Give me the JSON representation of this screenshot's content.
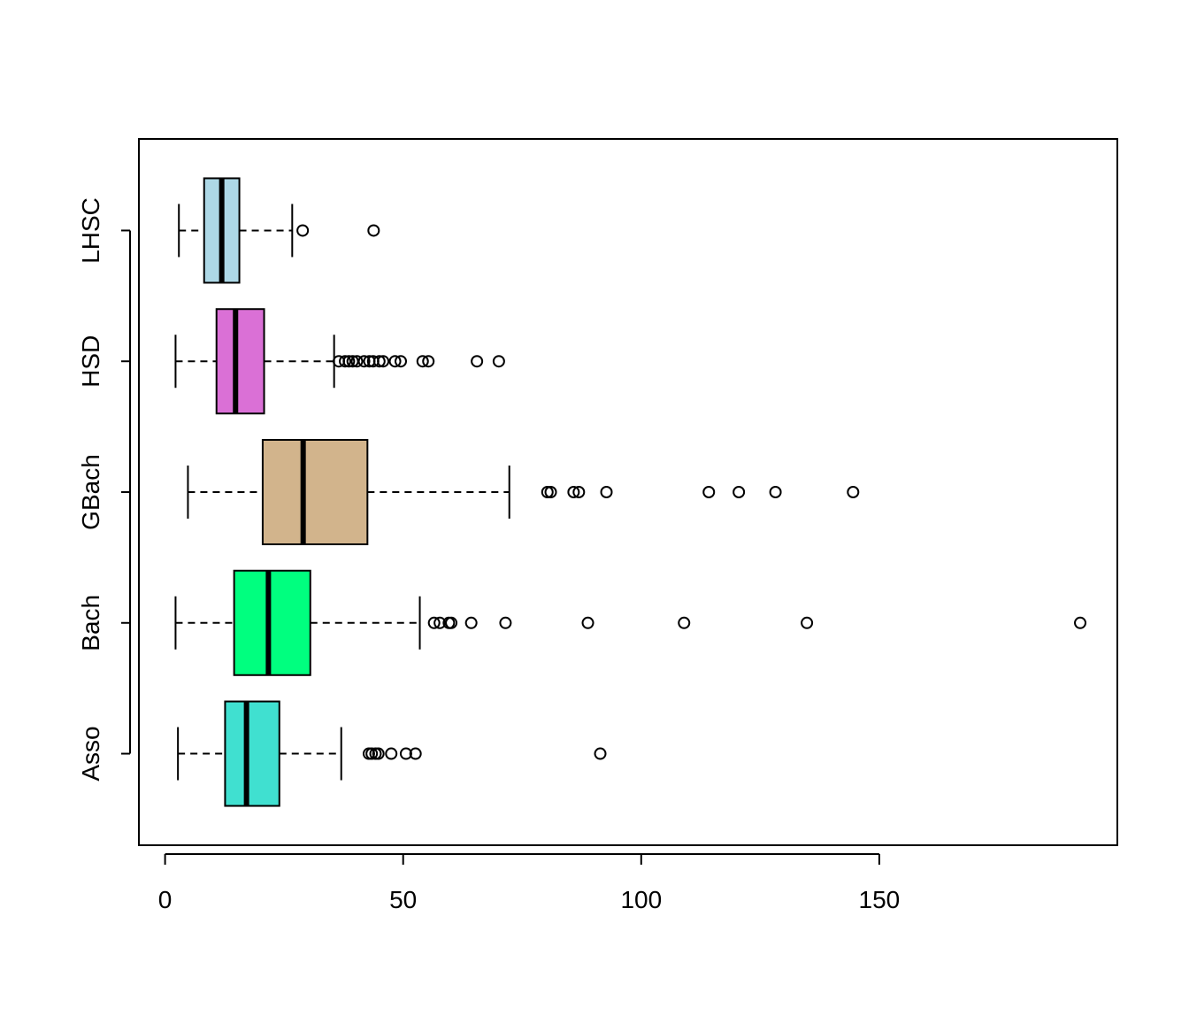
{
  "chart_data": {
    "type": "boxplot",
    "orientation": "horizontal",
    "title": "",
    "xlabel": "",
    "ylabel": "",
    "xlim": [
      -5.5,
      200
    ],
    "x_ticks": [
      0,
      50,
      100,
      150
    ],
    "x_tick_labels": [
      "0",
      "50",
      "100",
      "150"
    ],
    "grid": false,
    "categories": [
      "Asso",
      "Bach",
      "GBach",
      "HSD",
      "LHSC"
    ],
    "series": [
      {
        "name": "Asso",
        "color": "#40E0D0",
        "whisker_low": 2.7,
        "q1": 12.6,
        "median": 17.1,
        "q3": 24.0,
        "whisker_high": 37.0,
        "outliers": [
          42.8,
          43.4,
          44.2,
          44.8,
          47.5,
          50.6,
          52.6,
          91.4
        ]
      },
      {
        "name": "Bach",
        "color": "#00FF7F",
        "whisker_low": 2.2,
        "q1": 14.5,
        "median": 21.7,
        "q3": 30.5,
        "whisker_high": 53.5,
        "outliers": [
          56.5,
          57.7,
          59.6,
          60.1,
          64.3,
          71.5,
          88.8,
          109.0,
          134.8,
          192.2
        ]
      },
      {
        "name": "GBach",
        "color": "#D2B48C",
        "whisker_low": 4.8,
        "q1": 20.5,
        "median": 29.0,
        "q3": 42.5,
        "whisker_high": 72.3,
        "outliers": [
          80.3,
          81.0,
          85.8,
          86.9,
          92.7,
          114.2,
          120.5,
          128.2,
          144.5
        ]
      },
      {
        "name": "HSD",
        "color": "#DA70D6",
        "whisker_low": 2.2,
        "q1": 10.8,
        "median": 14.8,
        "q3": 20.8,
        "whisker_high": 35.5,
        "outliers": [
          36.5,
          37.8,
          38.6,
          39.4,
          40.3,
          41.8,
          42.9,
          43.7,
          45.0,
          45.8,
          48.3,
          49.5,
          54.1,
          55.3,
          65.5,
          70.1
        ]
      },
      {
        "name": "LHSC",
        "color": "#ADD8E6",
        "whisker_low": 2.9,
        "q1": 8.2,
        "median": 11.9,
        "q3": 15.6,
        "whisker_high": 26.7,
        "outliers": [
          28.9,
          43.8
        ]
      }
    ]
  }
}
